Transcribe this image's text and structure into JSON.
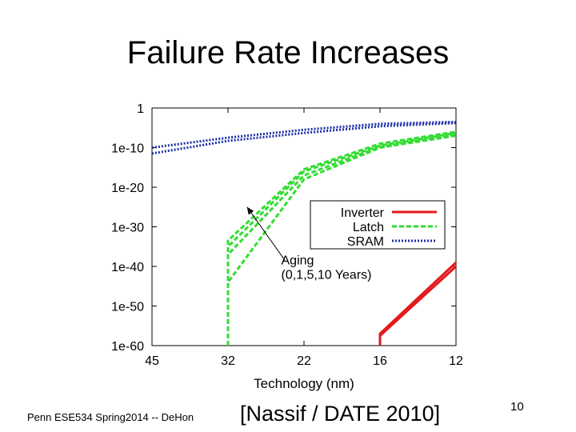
{
  "slide": {
    "title": "Failure Rate Increases",
    "footer": "Penn ESE534 Spring2014 -- DeHon",
    "citation": "[Nassif / DATE 2010]",
    "page_number": "10"
  },
  "chart_data": {
    "type": "line",
    "xlabel": "Technology (nm)",
    "ylabel": "",
    "categories": [
      "45",
      "32",
      "22",
      "16",
      "12"
    ],
    "y_scale": "log",
    "ylim_exponent": [
      -60,
      0
    ],
    "y_ticks": [
      {
        "label": "1",
        "exp": 0
      },
      {
        "label": "1e-10",
        "exp": -10
      },
      {
        "label": "1e-20",
        "exp": -20
      },
      {
        "label": "1e-30",
        "exp": -30
      },
      {
        "label": "1e-40",
        "exp": -40
      },
      {
        "label": "1e-50",
        "exp": -50
      },
      {
        "label": "1e-60",
        "exp": -60
      }
    ],
    "legend_position": "right",
    "grid": false,
    "series": [
      {
        "name": "Inverter",
        "color": "#e31a1c",
        "dash": "solid",
        "lines": [
          {
            "points": [
              [
                3,
                -60
              ],
              [
                3,
                -57
              ],
              [
                4,
                -39
              ]
            ]
          },
          {
            "points": [
              [
                3,
                -60
              ],
              [
                3,
                -57.5
              ],
              [
                4,
                -40
              ]
            ]
          }
        ]
      },
      {
        "name": "Latch",
        "color": "#33dd33",
        "dash": "dashed",
        "lines": [
          {
            "points": [
              [
                1,
                -60
              ],
              [
                1,
                -33.5
              ],
              [
                2,
                -15.5
              ],
              [
                3,
                -9
              ],
              [
                4,
                -6
              ]
            ]
          },
          {
            "points": [
              [
                1,
                -60
              ],
              [
                1,
                -35
              ],
              [
                2,
                -16
              ],
              [
                3,
                -9.5
              ],
              [
                4,
                -6.3
              ]
            ]
          },
          {
            "points": [
              [
                1,
                -60
              ],
              [
                1,
                -37
              ],
              [
                2,
                -17
              ],
              [
                3,
                -9.8
              ],
              [
                4,
                -6.6
              ]
            ]
          },
          {
            "points": [
              [
                1,
                -60
              ],
              [
                1,
                -44
              ],
              [
                2,
                -18
              ],
              [
                3,
                -10
              ],
              [
                4,
                -7
              ]
            ]
          }
        ]
      },
      {
        "name": "SRAM",
        "color": "#1c2fa8",
        "dash": "dotted",
        "lines": [
          {
            "points": [
              [
                0,
                -10
              ],
              [
                1,
                -7.5
              ],
              [
                2,
                -5.5
              ],
              [
                3,
                -4
              ],
              [
                4,
                -3.5
              ]
            ]
          },
          {
            "points": [
              [
                0,
                -11.5
              ],
              [
                1,
                -8.3
              ],
              [
                2,
                -6.3
              ],
              [
                3,
                -4.6
              ],
              [
                4,
                -3.8
              ]
            ]
          }
        ]
      }
    ],
    "annotation": {
      "line1": "Aging",
      "line2": "(0,1,5,10 Years)",
      "text_at": [
        1.7,
        -39.5
      ],
      "arrow_from": [
        1.75,
        -38.5
      ],
      "arrow_to": [
        1.25,
        -25
      ]
    }
  }
}
